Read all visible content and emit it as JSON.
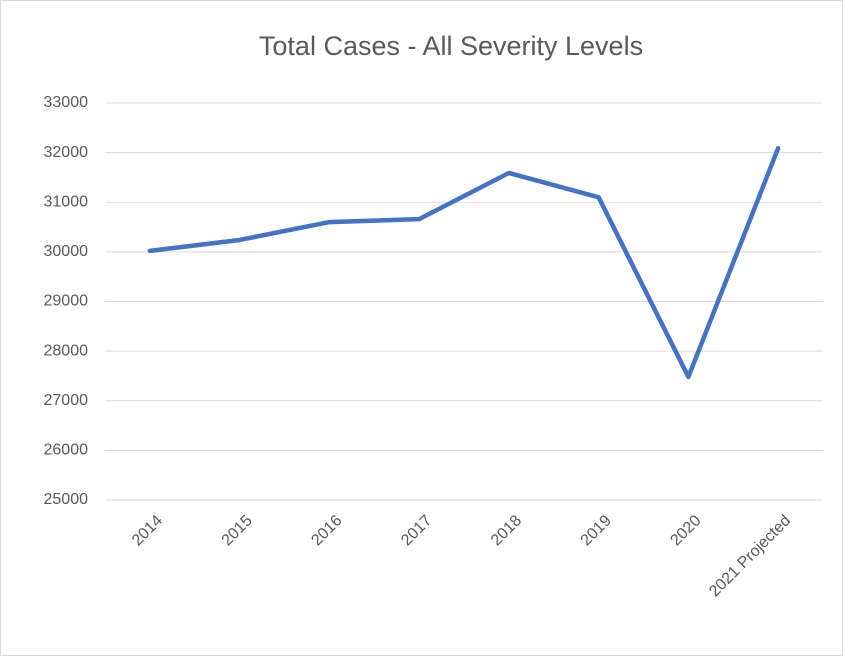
{
  "chart_data": {
    "type": "line",
    "title": "Total Cases - All Severity Levels",
    "categories": [
      "2014",
      "2015",
      "2016",
      "2017",
      "2018",
      "2019",
      "2020",
      "2021 Projected"
    ],
    "series": [
      {
        "name": "Total Cases",
        "color": "#4472c4",
        "values": [
          30020,
          30240,
          30600,
          30660,
          31590,
          31100,
          27480,
          32090
        ]
      }
    ],
    "ylim": [
      25000,
      33000
    ],
    "yticks": [
      25000,
      26000,
      27000,
      28000,
      29000,
      30000,
      31000,
      32000,
      33000
    ],
    "grid": true,
    "legend": false
  }
}
